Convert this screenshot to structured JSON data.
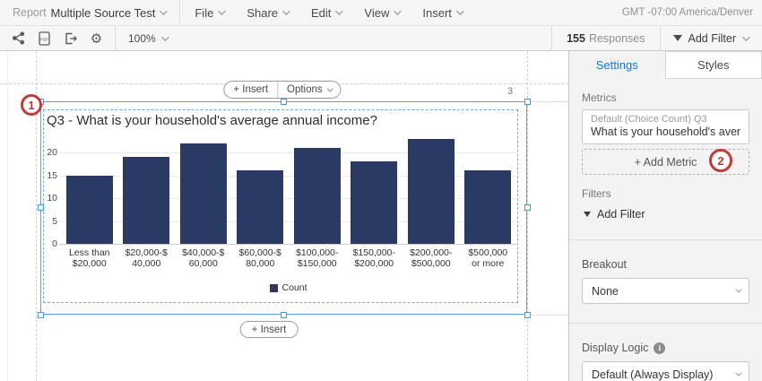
{
  "menubar": {
    "report_label": "Report",
    "report_name": "Multiple Source Test",
    "menus": [
      "File",
      "Share",
      "Edit",
      "View",
      "Insert"
    ],
    "timezone": "GMT -07:00 America/Denver"
  },
  "toolbar": {
    "icons": [
      "share-icon",
      "pdf-export-icon",
      "export-icon",
      "gear-icon"
    ],
    "zoom_level": "100%",
    "responses_count": "155",
    "responses_label": "Responses",
    "add_filter_label": "Add Filter"
  },
  "canvas": {
    "insert_top_label": "+ Insert",
    "options_label": "Options",
    "insert_bottom_label": "+ Insert",
    "page_number": "3",
    "annotation_1": "1",
    "annotation_2": "2"
  },
  "chart_data": {
    "type": "bar",
    "title": "Q3 - What is your household's average annual income?",
    "categories": [
      [
        "Less than",
        "$20,000"
      ],
      [
        "$20,000-$",
        "40,000"
      ],
      [
        "$40,000-$",
        "60,000"
      ],
      [
        "$60,000-$",
        "80,000"
      ],
      [
        "$100,000-",
        "$150,000"
      ],
      [
        "$150,000-",
        "$200,000"
      ],
      [
        "$200,000-",
        "$500,000"
      ],
      [
        "$500,000",
        "or more"
      ]
    ],
    "values": [
      15,
      19,
      22,
      16,
      21,
      18,
      23,
      16
    ],
    "yticks": [
      0,
      5,
      10,
      15,
      20
    ],
    "ylim": [
      0,
      23.5
    ],
    "legend": [
      "Count"
    ],
    "bar_color": "#2a3a64",
    "grid": true,
    "legend_position": "bottom"
  },
  "sidebar": {
    "tabs": [
      {
        "label": "Settings",
        "active": true
      },
      {
        "label": "Styles",
        "active": false
      }
    ],
    "metrics": {
      "label": "Metrics",
      "card_line1": "Default (Choice Count) Q3",
      "card_line2": "What is your household's averag…",
      "add_metric_label": "+ Add Metric"
    },
    "filters": {
      "label": "Filters",
      "add_filter_label": "Add Filter"
    },
    "breakout": {
      "label": "Breakout",
      "value": "None"
    },
    "display_logic": {
      "label": "Display Logic",
      "value": "Default (Always Display)"
    }
  },
  "colors": {
    "accent_blue": "#1a74d0",
    "selection_blue": "#57a1e6",
    "bar_navy": "#2a3a64",
    "annotation_red": "#c23b37",
    "toolbar_bg": "#f6f6f6",
    "sidebar_bg": "#f3f3f3"
  }
}
